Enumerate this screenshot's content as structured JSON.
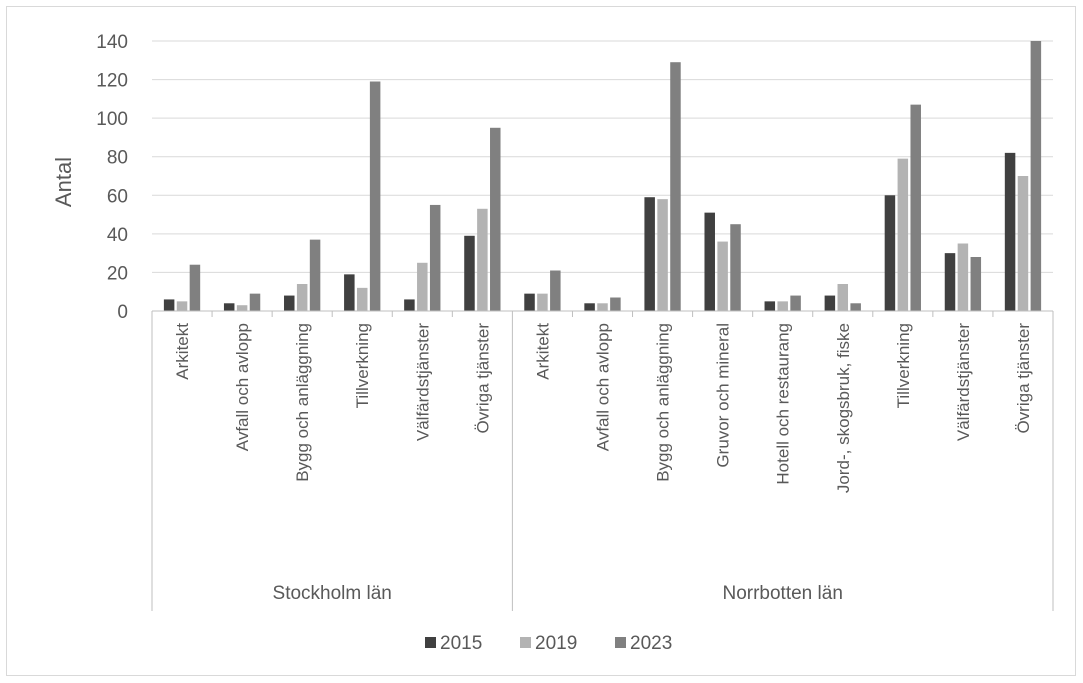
{
  "chart_data": {
    "type": "bar",
    "title": "",
    "xlabel": "",
    "ylabel": "Antal",
    "ylim": [
      0,
      140
    ],
    "yticks": [
      0,
      20,
      40,
      60,
      80,
      100,
      120,
      140
    ],
    "grid": true,
    "legend_position": "bottom",
    "colors": [
      "#404040",
      "#b3b3b3",
      "#808080"
    ],
    "groups": [
      {
        "name": "Stockholm län",
        "categories": [
          "Arkitekt",
          "Avfall och avlopp",
          "Bygg och anläggning",
          "Tillverkning",
          "Välfärdstjänster",
          "Övriga tjänster"
        ]
      },
      {
        "name": "Norrbotten län",
        "categories": [
          "Arkitekt",
          "Avfall och avlopp",
          "Bygg och anläggning",
          "Gruvor och mineral",
          "Hotell och restaurang",
          "Jord-, skogsbruk, fiske",
          "Tillverkning",
          "Välfärdstjänster",
          "Övriga tjänster"
        ]
      }
    ],
    "series": [
      {
        "name": "2015",
        "values": [
          6,
          4,
          8,
          19,
          6,
          39,
          9,
          4,
          59,
          51,
          5,
          8,
          60,
          30,
          82
        ]
      },
      {
        "name": "2019",
        "values": [
          5,
          3,
          14,
          12,
          25,
          53,
          9,
          4,
          58,
          36,
          5,
          14,
          79,
          35,
          70
        ]
      },
      {
        "name": "2023",
        "values": [
          24,
          9,
          37,
          119,
          55,
          95,
          21,
          7,
          129,
          45,
          8,
          4,
          107,
          28,
          140
        ]
      }
    ]
  }
}
